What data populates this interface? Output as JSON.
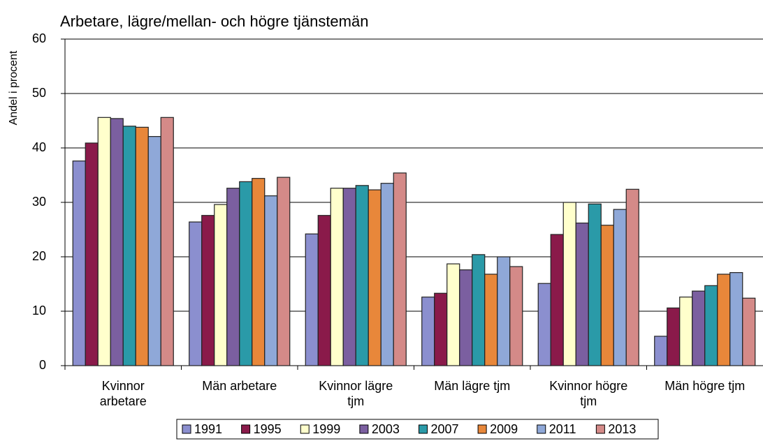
{
  "chart_data": {
    "type": "bar",
    "title": "Arbetare, lägre/mellan- och högre tjänstemän",
    "y_label": "Andel i procent",
    "categories": [
      "Kvinnor arbetare",
      "Män arbetare",
      "Kvinnor lägre tjm",
      "Män lägre tjm",
      "Kvinnor högre tjm",
      "Män högre tjm"
    ],
    "series": [
      {
        "name": "1991",
        "color": "#8b8fcf",
        "values": [
          37.6,
          26.4,
          24.2,
          12.6,
          15.1,
          5.4
        ]
      },
      {
        "name": "1995",
        "color": "#8a1a4a",
        "values": [
          40.9,
          27.6,
          27.6,
          13.3,
          24.1,
          10.6
        ]
      },
      {
        "name": "1999",
        "color": "#ffffcc",
        "values": [
          45.6,
          29.6,
          32.6,
          18.7,
          30.0,
          12.6
        ]
      },
      {
        "name": "2003",
        "color": "#7b5fa0",
        "values": [
          45.4,
          32.6,
          32.6,
          17.6,
          26.2,
          13.7
        ]
      },
      {
        "name": "2007",
        "color": "#2a9aa8",
        "values": [
          44.0,
          33.8,
          33.1,
          20.4,
          29.7,
          14.7
        ]
      },
      {
        "name": "2009",
        "color": "#e8873a",
        "values": [
          43.8,
          34.4,
          32.3,
          16.8,
          25.8,
          16.8
        ]
      },
      {
        "name": "2011",
        "color": "#8fa8d8",
        "values": [
          42.1,
          31.2,
          33.5,
          20.0,
          28.7,
          17.1
        ]
      },
      {
        "name": "2013",
        "color": "#d48a88",
        "values": [
          45.6,
          34.6,
          35.4,
          18.2,
          32.4,
          12.4
        ]
      }
    ],
    "ylim": [
      0,
      60
    ],
    "yticks": [
      0,
      10,
      20,
      30,
      40,
      50,
      60
    ],
    "grid": true,
    "legend": "bottom"
  }
}
